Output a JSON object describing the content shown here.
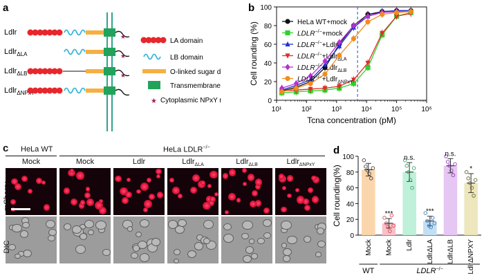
{
  "panels": {
    "a": {
      "label": "a",
      "constructs": [
        {
          "name": "Ldlr",
          "sub": ""
        },
        {
          "name": "Ldlr",
          "sub": "ΔLA"
        },
        {
          "name": "Ldlr",
          "sub": "ΔLB"
        },
        {
          "name": "Ldlr",
          "sub": "ΔNPxY"
        }
      ],
      "legend": [
        "LA domain",
        "LB domain",
        "O-linked sugar domain",
        "Transmembrane domain",
        "Cytoplasmic NPxY motif"
      ],
      "colors": {
        "la": "#e8262b",
        "lb": "#38b6d8",
        "sugar": "#f5b041",
        "tm": "#21a35b",
        "membrane": "#2aa58c",
        "npxy": "#9b1f5a"
      }
    },
    "b": {
      "label": "b"
    },
    "c": {
      "label": "c",
      "groups": [
        "HeLa WT",
        "HeLa LDLR"
      ],
      "group_sup": "−/−",
      "columns": [
        {
          "name": "Mock",
          "sub": ""
        },
        {
          "name": "Mock",
          "sub": ""
        },
        {
          "name": "Ldlr",
          "sub": ""
        },
        {
          "name": "Ldlr",
          "sub": "ΔLA"
        },
        {
          "name": "Ldlr",
          "sub": "ΔLB"
        },
        {
          "name": "Ldlr",
          "sub": "ΔNPxY"
        }
      ],
      "rows": [
        "mCherry",
        "DIC"
      ]
    },
    "d": {
      "label": "d"
    }
  },
  "chart_data": [
    {
      "type": "line",
      "xlabel": "Tcna concentration (pM)",
      "ylabel": "Cell rounding (%)",
      "xscale": "log",
      "xlim": [
        10,
        1000000
      ],
      "ylim": [
        0,
        100
      ],
      "xticks": [
        "10¹",
        "10²",
        "10³",
        "10⁴",
        "10⁵",
        "10⁶"
      ],
      "yticks": [
        0,
        20,
        40,
        60,
        80,
        100
      ],
      "x": [
        15,
        45,
        135,
        410,
        1230,
        3700,
        11000,
        33000,
        100000,
        300000
      ],
      "series": [
        {
          "name": "HeLa WT+mock",
          "sup": "",
          "sub": "",
          "color": "#111111",
          "marker": "circle",
          "values": [
            10,
            14,
            20,
            35,
            60,
            80,
            92,
            95,
            96,
            96
          ]
        },
        {
          "name": "LDLR",
          "sup": "−/−",
          "suffix": "+mock",
          "sub": "",
          "color": "#31d12a",
          "marker": "square",
          "values": [
            8,
            9,
            10,
            11,
            13,
            18,
            35,
            70,
            90,
            94
          ]
        },
        {
          "name": "LDLR",
          "sup": "−/−",
          "suffix": "+Ldlr",
          "sub": "",
          "color": "#1f2fd6",
          "marker": "triangle-up",
          "values": [
            11,
            16,
            22,
            38,
            58,
            78,
            90,
            95,
            96,
            96
          ]
        },
        {
          "name": "LDLR",
          "sup": "−/−",
          "suffix": "+Ldlr",
          "sub": "ΔLA",
          "color": "#e32a2a",
          "marker": "triangle-down",
          "values": [
            10,
            11,
            12,
            13,
            15,
            22,
            40,
            72,
            90,
            93
          ]
        },
        {
          "name": "LDLR",
          "sup": "−/−",
          "suffix": "+Ldlr",
          "sub": "ΔLB",
          "color": "#b62fd1",
          "marker": "diamond",
          "values": [
            13,
            18,
            26,
            42,
            62,
            80,
            90,
            94,
            95,
            95
          ]
        },
        {
          "name": "LDLR",
          "sup": "−/−",
          "suffix": "+Ldlr",
          "sub": "ΔNPxY",
          "color": "#f28c1e",
          "marker": "circle",
          "values": [
            9,
            13,
            18,
            28,
            48,
            66,
            84,
            92,
            94,
            95
          ]
        }
      ],
      "reference_line": {
        "x": 5000,
        "style": "dashed",
        "color": "#3a6fe0"
      }
    },
    {
      "type": "bar",
      "ylabel": "Cell rounding(%)",
      "ylim": [
        0,
        100
      ],
      "yticks": [
        0,
        20,
        40,
        60,
        80,
        100
      ],
      "categories": [
        "Mock",
        "Mock",
        "Ldlr",
        "LdlrΔLA",
        "LdlrΔLB",
        "LdlrΔNPXY"
      ],
      "values": [
        83,
        15,
        80,
        18,
        88,
        66
      ],
      "errors": [
        8,
        6,
        12,
        6,
        9,
        12
      ],
      "points": [
        [
          95,
          87,
          82,
          78,
          72,
          85
        ],
        [
          22,
          15,
          10,
          5,
          25,
          12
        ],
        [
          95,
          88,
          80,
          70,
          60,
          85
        ],
        [
          28,
          18,
          12,
          10,
          22,
          15
        ],
        [
          100,
          93,
          88,
          82,
          76,
          90
        ],
        [
          80,
          72,
          66,
          60,
          50,
          70
        ]
      ],
      "significance": [
        "",
        "***",
        "n.s.",
        "***",
        "n.s.",
        "*"
      ],
      "colors": [
        "#fbd6ac",
        "#f9c1c6",
        "#bff0d9",
        "#c3dff3",
        "#e6c6f3",
        "#eee6bd"
      ],
      "point_colors": [
        "#444444",
        "#d2505f",
        "#33a56b",
        "#3b7fc2",
        "#8b3fb3",
        "#6b6b2c"
      ],
      "group_labels": [
        {
          "text": "WT",
          "sup": ""
        },
        {
          "text": "LDLR",
          "sup": "−/−"
        }
      ]
    }
  ]
}
